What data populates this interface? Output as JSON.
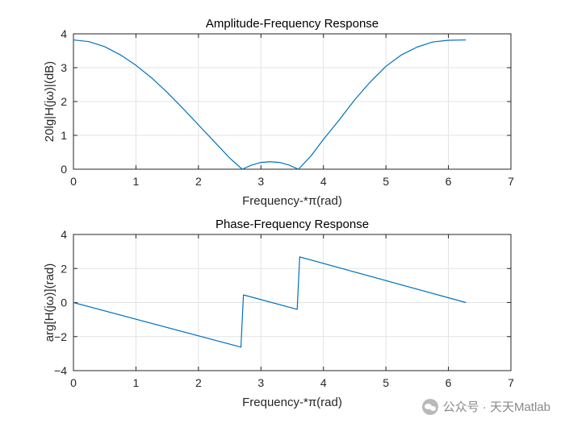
{
  "chart_data": [
    {
      "type": "line",
      "title": "Amplitude-Frequency Response",
      "xlabel": "Frequency-*π(rad)",
      "ylabel": "20lg|H(jω)|(dB)",
      "xlim": [
        0,
        7
      ],
      "ylim": [
        0,
        4
      ],
      "xticks": [
        0,
        1,
        2,
        3,
        4,
        5,
        6,
        7
      ],
      "yticks": [
        0,
        1,
        2,
        3,
        4
      ],
      "grid": true,
      "color": "#0072BD",
      "series": [
        {
          "x": [
            0,
            0.25,
            0.5,
            0.75,
            1.0,
            1.25,
            1.5,
            1.75,
            2.0,
            2.25,
            2.5,
            2.7,
            2.85,
            3.0,
            3.14,
            3.3,
            3.45,
            3.6,
            3.8,
            4.0,
            4.25,
            4.5,
            4.75,
            5.0,
            5.25,
            5.5,
            5.75,
            6.0,
            6.28
          ],
          "y": [
            3.82,
            3.77,
            3.62,
            3.38,
            3.07,
            2.7,
            2.27,
            1.8,
            1.31,
            0.82,
            0.33,
            0.0,
            0.12,
            0.2,
            0.22,
            0.2,
            0.12,
            0.0,
            0.39,
            0.88,
            1.45,
            2.05,
            2.58,
            3.04,
            3.38,
            3.61,
            3.76,
            3.81,
            3.82
          ]
        }
      ]
    },
    {
      "type": "line",
      "title": "Phase-Frequency Response",
      "xlabel": "Frequency-*π(rad)",
      "ylabel": "arg[H(jω)](rad)",
      "xlim": [
        0,
        7
      ],
      "ylim": [
        -4,
        4
      ],
      "xticks": [
        0,
        1,
        2,
        3,
        4,
        5,
        6,
        7
      ],
      "yticks": [
        -4,
        -2,
        0,
        2,
        4
      ],
      "grid": true,
      "color": "#0072BD",
      "series": [
        {
          "x": [
            0,
            2.68,
            2.72,
            3.58,
            3.62,
            6.28
          ],
          "y": [
            0,
            -2.62,
            0.45,
            -0.4,
            2.68,
            0
          ]
        }
      ]
    }
  ],
  "watermark": {
    "text": "公众号 · 天天Matlab",
    "icon": "wechat-icon"
  }
}
